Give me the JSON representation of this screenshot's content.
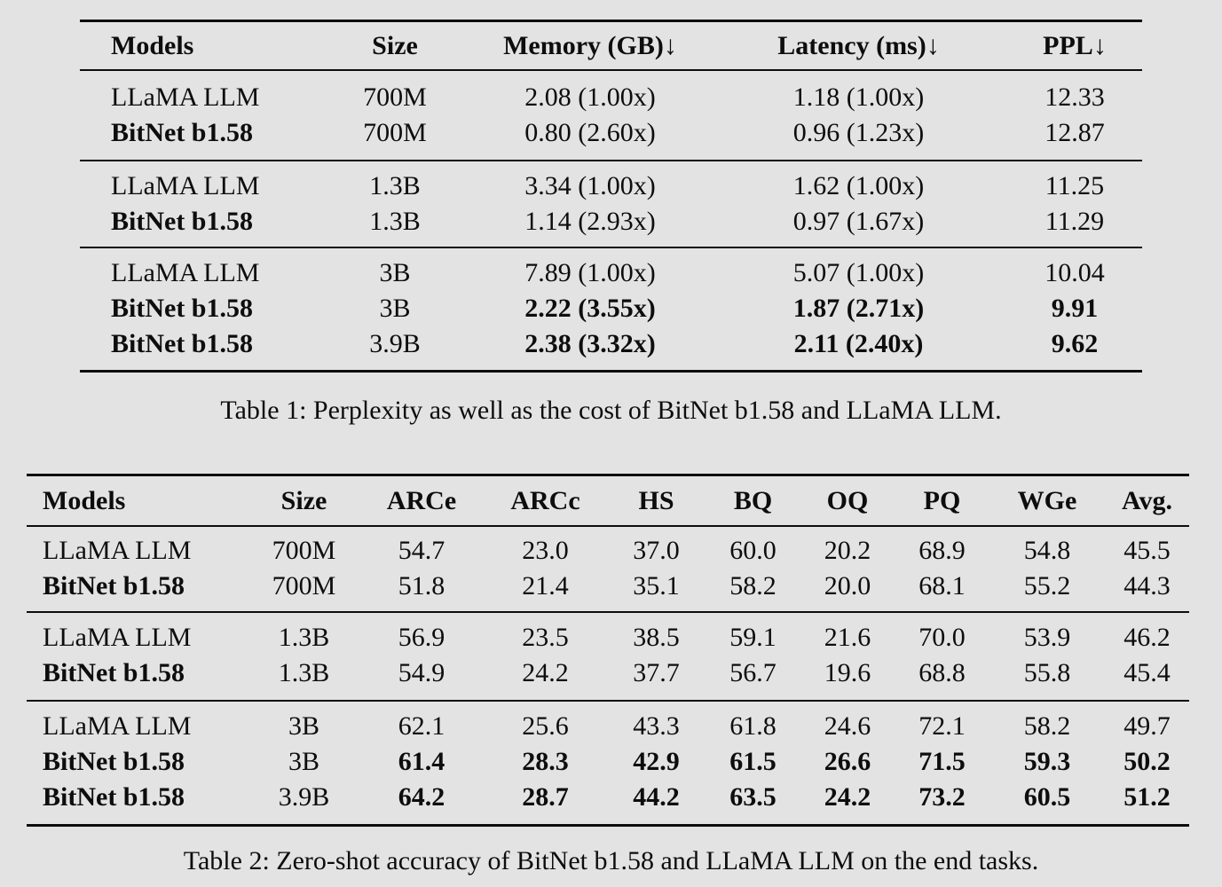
{
  "page": {
    "background_color": "#e3e3e3",
    "text_color": "#0d0d0d"
  },
  "table1": {
    "caption": "Table 1: Perplexity as well as the cost of BitNet b1.58 and LLaMA LLM.",
    "columns": {
      "models": "Models",
      "size": "Size",
      "memory": "Memory (GB)↓",
      "latency": "Latency (ms)↓",
      "ppl": "PPL↓"
    },
    "groups": [
      {
        "rows": [
          {
            "model": "LLaMA LLM",
            "size": "700M",
            "memory": "2.08 (1.00x)",
            "latency": "1.18 (1.00x)",
            "ppl": "12.33"
          },
          {
            "model": "BitNet b1.58",
            "size": "700M",
            "memory": "0.80 (2.60x)",
            "latency": "0.96 (1.23x)",
            "ppl": "12.87"
          }
        ]
      },
      {
        "rows": [
          {
            "model": "LLaMA LLM",
            "size": "1.3B",
            "memory": "3.34 (1.00x)",
            "latency": "1.62 (1.00x)",
            "ppl": "11.25"
          },
          {
            "model": "BitNet b1.58",
            "size": "1.3B",
            "memory": "1.14 (2.93x)",
            "latency": "0.97 (1.67x)",
            "ppl": "11.29"
          }
        ]
      },
      {
        "rows": [
          {
            "model": "LLaMA LLM",
            "size": "3B",
            "memory": "7.89 (1.00x)",
            "latency": "5.07 (1.00x)",
            "ppl": "10.04"
          },
          {
            "model": "BitNet b1.58",
            "size": "3B",
            "memory": "2.22 (3.55x)",
            "latency": "1.87 (2.71x)",
            "ppl": "9.91"
          },
          {
            "model": "BitNet b1.58",
            "size": "3.9B",
            "memory": "2.38 (3.32x)",
            "latency": "2.11 (2.40x)",
            "ppl": "9.62"
          }
        ]
      }
    ]
  },
  "table2": {
    "caption": "Table 2: Zero-shot accuracy of BitNet b1.58 and LLaMA LLM on the end tasks.",
    "columns": {
      "models": "Models",
      "size": "Size",
      "arce": "ARCe",
      "arcc": "ARCc",
      "hs": "HS",
      "bq": "BQ",
      "oq": "OQ",
      "pq": "PQ",
      "wge": "WGe",
      "avg": "Avg."
    },
    "groups": [
      {
        "rows": [
          {
            "model": "LLaMA LLM",
            "size": "700M",
            "arce": "54.7",
            "arcc": "23.0",
            "hs": "37.0",
            "bq": "60.0",
            "oq": "20.2",
            "pq": "68.9",
            "wge": "54.8",
            "avg": "45.5"
          },
          {
            "model": "BitNet b1.58",
            "size": "700M",
            "arce": "51.8",
            "arcc": "21.4",
            "hs": "35.1",
            "bq": "58.2",
            "oq": "20.0",
            "pq": "68.1",
            "wge": "55.2",
            "avg": "44.3"
          }
        ]
      },
      {
        "rows": [
          {
            "model": "LLaMA LLM",
            "size": "1.3B",
            "arce": "56.9",
            "arcc": "23.5",
            "hs": "38.5",
            "bq": "59.1",
            "oq": "21.6",
            "pq": "70.0",
            "wge": "53.9",
            "avg": "46.2"
          },
          {
            "model": "BitNet b1.58",
            "size": "1.3B",
            "arce": "54.9",
            "arcc": "24.2",
            "hs": "37.7",
            "bq": "56.7",
            "oq": "19.6",
            "pq": "68.8",
            "wge": "55.8",
            "avg": "45.4"
          }
        ]
      },
      {
        "rows": [
          {
            "model": "LLaMA LLM",
            "size": "3B",
            "arce": "62.1",
            "arcc": "25.6",
            "hs": "43.3",
            "bq": "61.8",
            "oq": "24.6",
            "pq": "72.1",
            "wge": "58.2",
            "avg": "49.7"
          },
          {
            "model": "BitNet b1.58",
            "size": "3B",
            "arce": "61.4",
            "arcc": "28.3",
            "hs": "42.9",
            "bq": "61.5",
            "oq": "26.6",
            "pq": "71.5",
            "wge": "59.3",
            "avg": "50.2"
          },
          {
            "model": "BitNet b1.58",
            "size": "3.9B",
            "arce": "64.2",
            "arcc": "28.7",
            "hs": "44.2",
            "bq": "63.5",
            "oq": "24.2",
            "pq": "73.2",
            "wge": "60.5",
            "avg": "51.2"
          }
        ]
      }
    ]
  }
}
